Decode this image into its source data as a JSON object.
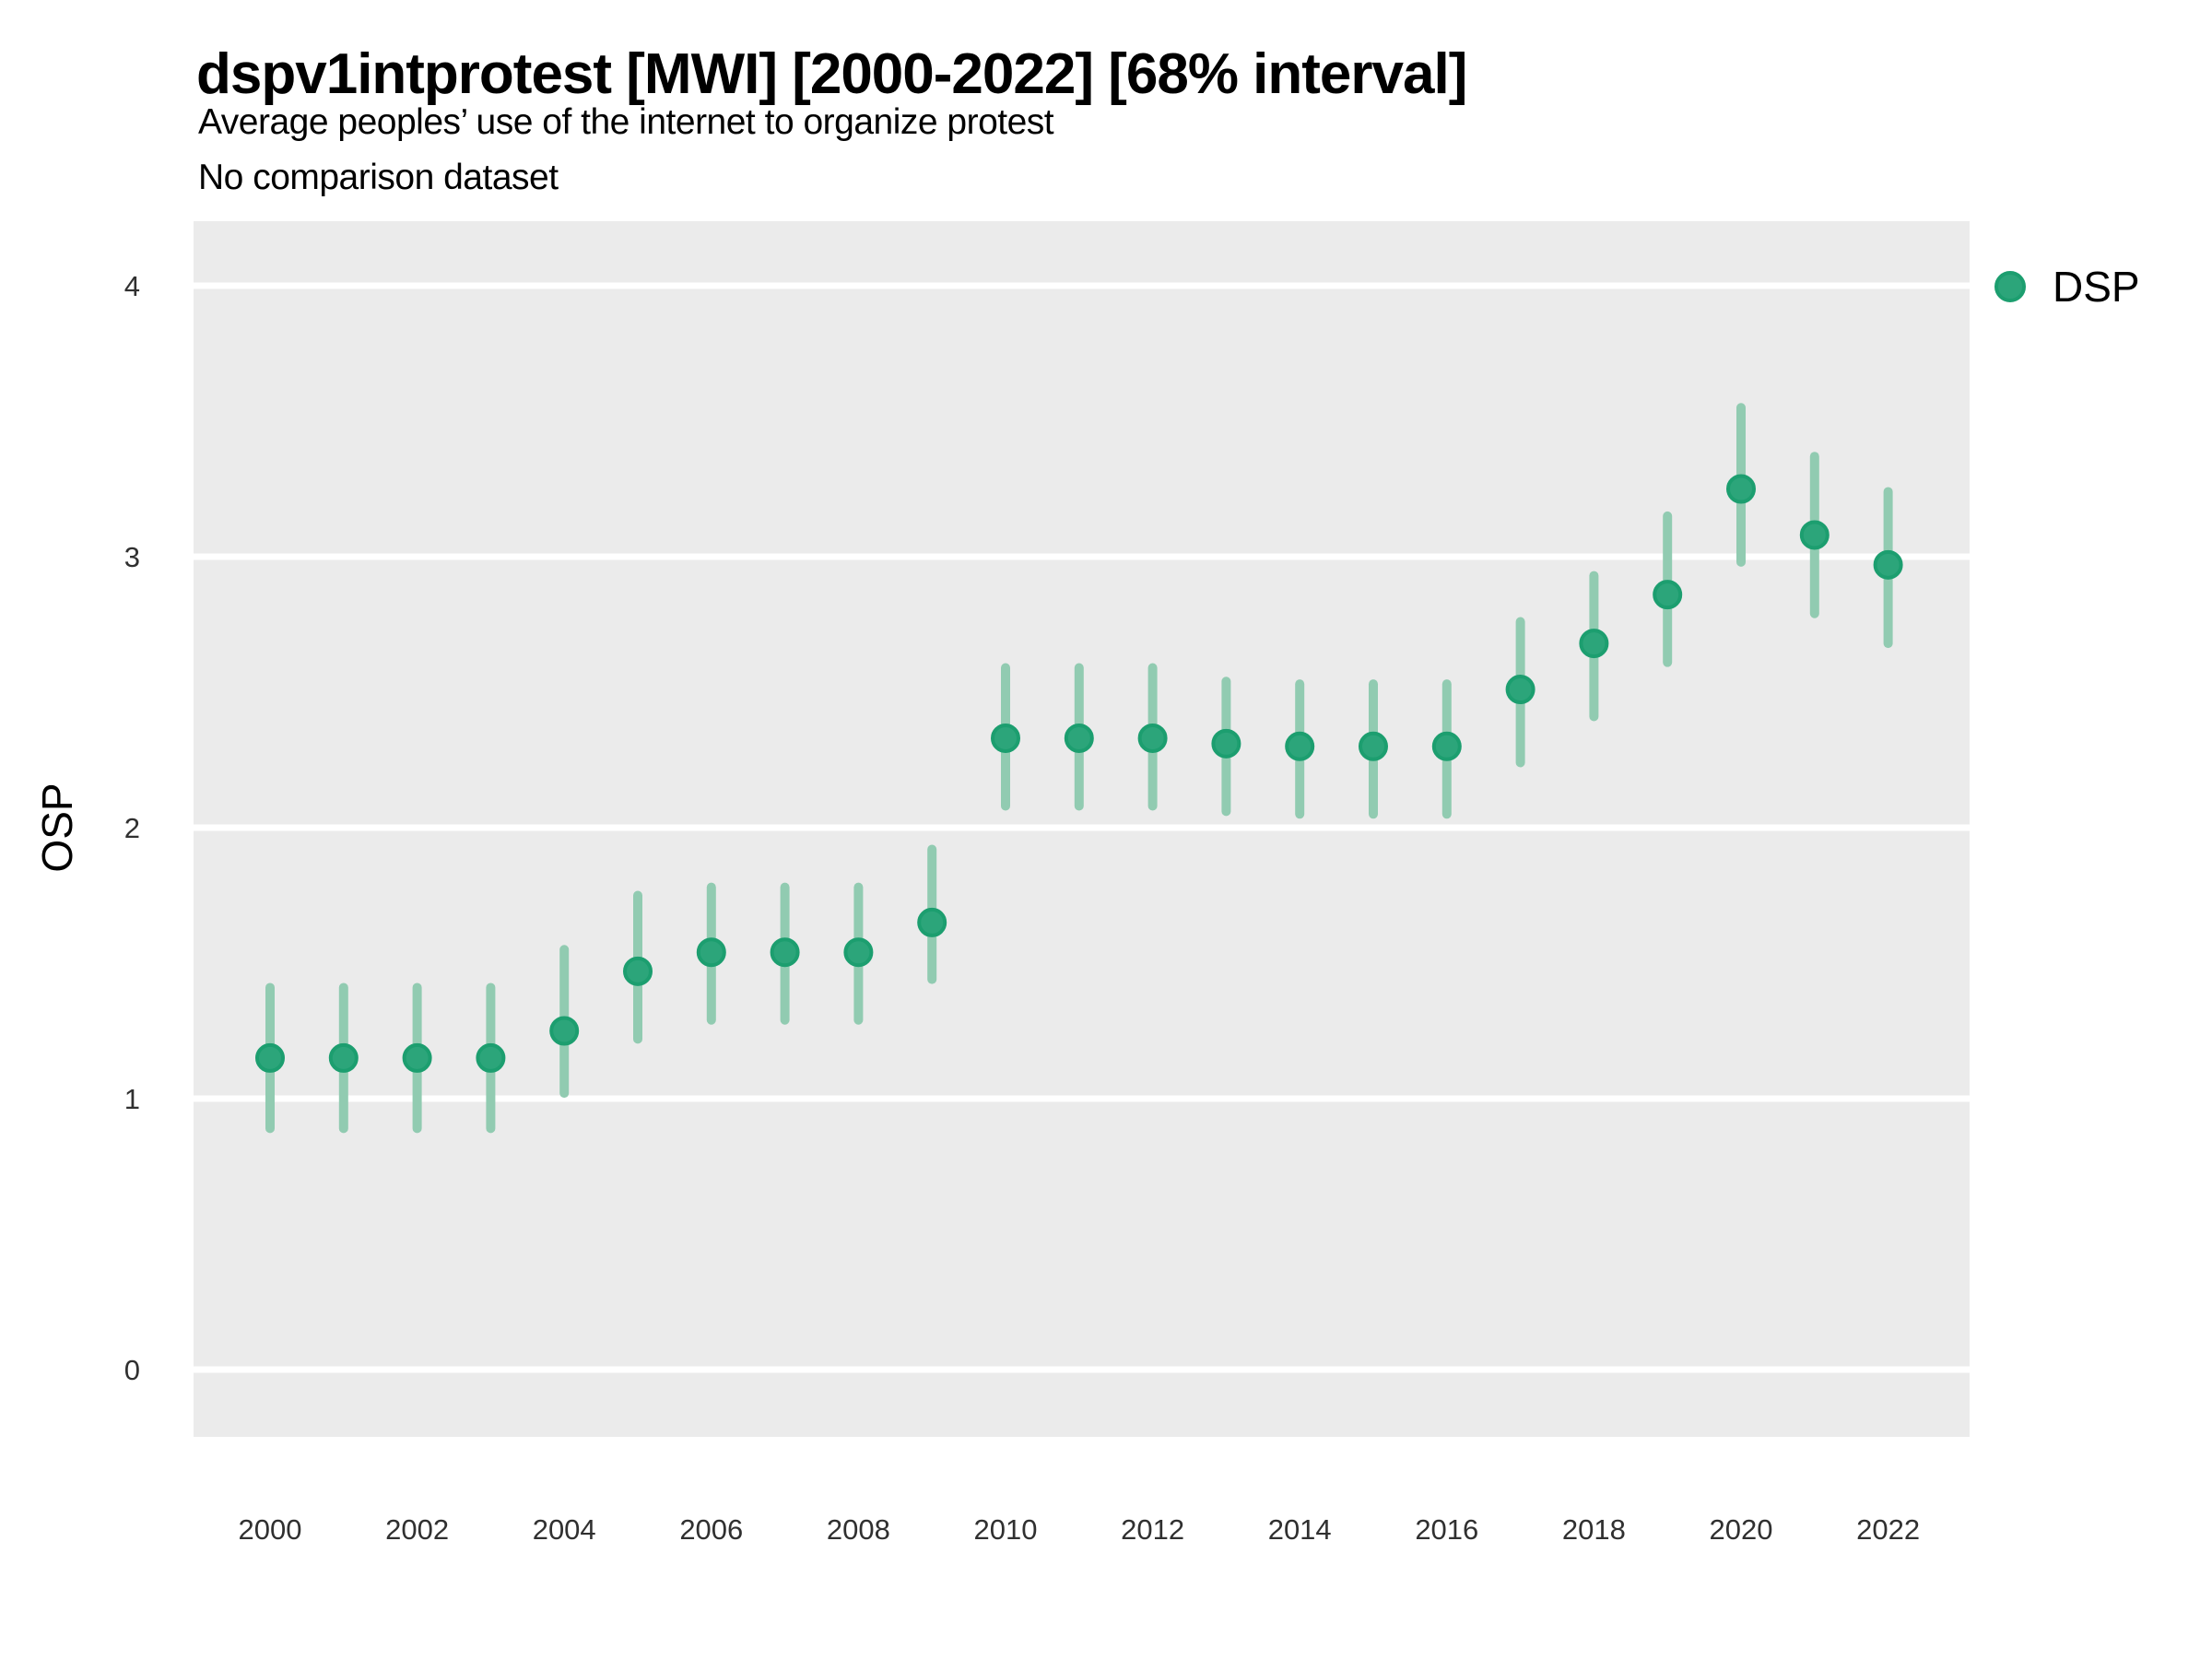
{
  "colors": {
    "background": "#FFFFFF",
    "panel_bg": "#EBEBEB",
    "grid_line": "#FFFFFF",
    "point_fill": "#2CA57A",
    "point_stroke": "#1C9E6F",
    "interval_line": "#91CBB1",
    "tick_text": "#303030",
    "text": "#000000"
  },
  "chart_data": {
    "type": "scatter",
    "subtype": "pointrange",
    "title": "dspv1intprotest [MWI] [2000-2022] [68% interval]",
    "subtitle": "Average peoples’ use of the internet to organize protest",
    "note": "No comparison dataset",
    "xlabel": "",
    "ylabel": "OSP",
    "interval": "68%",
    "grid": "horizontal-major-only",
    "legend_position": "top-right",
    "xlim": [
      1999,
      2023.1
    ],
    "ylim": [
      -0.25,
      4.24
    ],
    "x_ticks": [
      2000,
      2002,
      2004,
      2006,
      2008,
      2010,
      2012,
      2014,
      2016,
      2018,
      2020,
      2022
    ],
    "y_ticks": [
      0,
      1,
      2,
      3,
      4
    ],
    "series": [
      {
        "name": "DSP",
        "x": [
          2000,
          2001,
          2002,
          2003,
          2004,
          2005,
          2006,
          2007,
          2008,
          2009,
          2010,
          2011,
          2012,
          2013,
          2014,
          2015,
          2016,
          2017,
          2018,
          2019,
          2020,
          2021,
          2022
        ],
        "y": [
          1.15,
          1.15,
          1.15,
          1.15,
          1.25,
          1.47,
          1.54,
          1.54,
          1.54,
          1.65,
          2.33,
          2.33,
          2.33,
          2.31,
          2.3,
          2.3,
          2.3,
          2.51,
          2.68,
          2.86,
          3.25,
          3.08,
          2.97
        ],
        "y_low": [
          0.89,
          0.89,
          0.89,
          0.89,
          1.02,
          1.22,
          1.29,
          1.29,
          1.29,
          1.44,
          2.08,
          2.08,
          2.08,
          2.06,
          2.05,
          2.05,
          2.05,
          2.24,
          2.41,
          2.61,
          2.98,
          2.79,
          2.68
        ],
        "y_high": [
          1.41,
          1.41,
          1.41,
          1.41,
          1.55,
          1.75,
          1.78,
          1.78,
          1.78,
          1.92,
          2.59,
          2.59,
          2.59,
          2.54,
          2.53,
          2.53,
          2.53,
          2.76,
          2.93,
          3.15,
          3.55,
          3.37,
          3.24
        ]
      }
    ]
  }
}
